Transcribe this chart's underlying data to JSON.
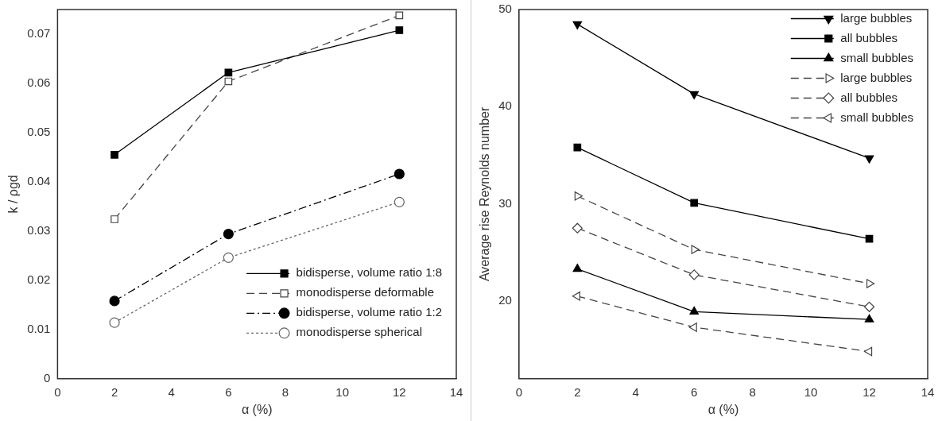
{
  "chart_data": [
    {
      "type": "line",
      "xlabel": "α (%)",
      "ylabel": "k / ρgd",
      "x": [
        2,
        6,
        12
      ],
      "xlim": [
        0,
        14
      ],
      "xticks": [
        0,
        2,
        4,
        6,
        8,
        10,
        12,
        14
      ],
      "ylim": [
        0,
        0.075
      ],
      "yticks": [
        0,
        0.01,
        0.02,
        0.03,
        0.04,
        0.05,
        0.06,
        0.07
      ],
      "grid": false,
      "legend": "bottom right",
      "series": [
        {
          "name": "bidisperse, volume ratio 1:8",
          "color": "#000000",
          "values": [
            0.0455,
            0.0622,
            0.0708
          ],
          "marker": "square",
          "line_style": "solid"
        },
        {
          "name": "monodisperse deformable",
          "color": "#444444",
          "values": [
            0.0324,
            0.0604,
            0.0738
          ],
          "marker": "square-open",
          "line_style": "dashed"
        },
        {
          "name": "bidisperse, volume ratio 1:2",
          "color": "#000000",
          "values": [
            0.0158,
            0.0294,
            0.0416
          ],
          "marker": "circle",
          "line_style": "dashdot"
        },
        {
          "name": "monodisperse spherical",
          "color": "#666666",
          "values": [
            0.0114,
            0.0246,
            0.0359
          ],
          "marker": "circle-open",
          "line_style": "dotted"
        }
      ]
    },
    {
      "type": "line",
      "xlabel": "α (%)",
      "ylabel": "Average rise Reynolds number",
      "x": [
        2,
        6,
        12
      ],
      "xlim": [
        0,
        14
      ],
      "xticks": [
        0,
        2,
        4,
        6,
        8,
        10,
        12,
        14
      ],
      "ylim": [
        12,
        50
      ],
      "yticks": [
        20,
        30,
        40,
        50
      ],
      "grid": false,
      "legend": "top right",
      "series": [
        {
          "name": "large bubbles",
          "color": "#000000",
          "values": [
            48.5,
            41.3,
            34.7
          ],
          "marker": "triangle-down",
          "line_style": "solid"
        },
        {
          "name": "all bubbles",
          "color": "#000000",
          "values": [
            35.8,
            30.1,
            26.4
          ],
          "marker": "square",
          "line_style": "solid"
        },
        {
          "name": "small bubbles",
          "color": "#000000",
          "values": [
            23.3,
            18.9,
            18.1
          ],
          "marker": "triangle",
          "line_style": "solid"
        },
        {
          "name": "large bubbles",
          "color": "#444444",
          "values": [
            30.8,
            25.3,
            21.8
          ],
          "marker": "triangle-right-open",
          "line_style": "dashed"
        },
        {
          "name": "all bubbles",
          "color": "#444444",
          "values": [
            27.5,
            22.7,
            19.4
          ],
          "marker": "diamond-open",
          "line_style": "dashed"
        },
        {
          "name": "small bubbles",
          "color": "#444444",
          "values": [
            20.5,
            17.3,
            14.8
          ],
          "marker": "triangle-left-open",
          "line_style": "dashed"
        }
      ]
    }
  ]
}
